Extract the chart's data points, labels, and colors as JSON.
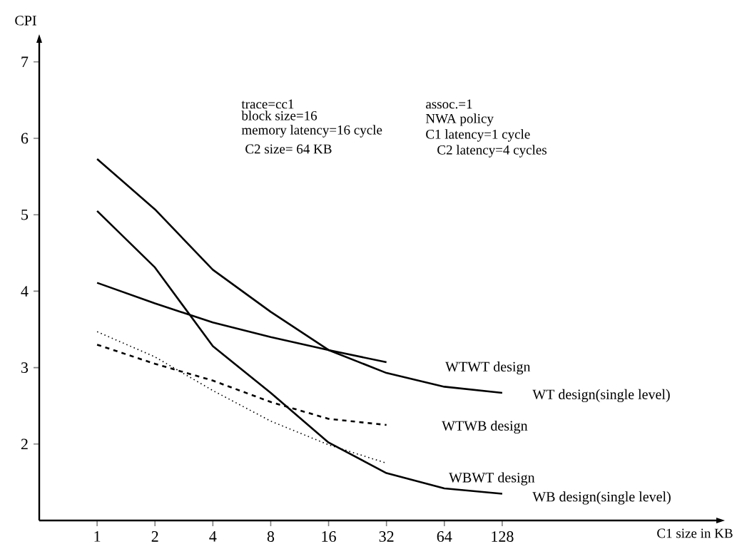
{
  "chart_data": {
    "type": "line",
    "ylabel": "CPI",
    "categories": [
      "1",
      "2",
      "4",
      "8",
      "16",
      "32",
      "64",
      "128"
    ],
    "ylim": [
      1,
      7.25
    ],
    "yticks": [
      2,
      3,
      4,
      5,
      6,
      7
    ],
    "series": [
      {
        "name": "WTWT design",
        "color": "#000000",
        "line_style": "solid",
        "values": [
          4.11,
          3.84,
          3.59,
          3.4,
          3.23,
          3.07,
          null,
          null
        ]
      },
      {
        "name": "WT design(single level)",
        "color": "#000000",
        "line_style": "solid",
        "values": [
          5.73,
          5.07,
          4.28,
          3.73,
          3.23,
          2.93,
          2.75,
          2.67
        ]
      },
      {
        "name": "WTWB design",
        "color": "#000000",
        "line_style": "dashed",
        "values": [
          3.3,
          3.05,
          2.83,
          2.55,
          2.33,
          2.25,
          null,
          null
        ]
      },
      {
        "name": "WBWT design",
        "color": "#000000",
        "line_style": "dotted",
        "values": [
          3.47,
          3.14,
          2.7,
          2.3,
          1.99,
          1.75,
          null,
          null
        ]
      },
      {
        "name": "WB design(single level)",
        "color": "#000000",
        "line_style": "solid",
        "values": [
          5.05,
          4.31,
          3.28,
          2.67,
          2.02,
          1.62,
          1.42,
          1.35
        ]
      }
    ],
    "annotations": [
      "trace=cc1",
      "block size=16",
      "memory latency=16 cycle",
      "C2 size= 64 KB",
      "assoc.=1",
      "NWA policy",
      "C1 latency=1 cycle",
      "C2 latency=4 cycles",
      "C1 size in KB"
    ],
    "grid": false,
    "legend": false,
    "marker": "none"
  }
}
